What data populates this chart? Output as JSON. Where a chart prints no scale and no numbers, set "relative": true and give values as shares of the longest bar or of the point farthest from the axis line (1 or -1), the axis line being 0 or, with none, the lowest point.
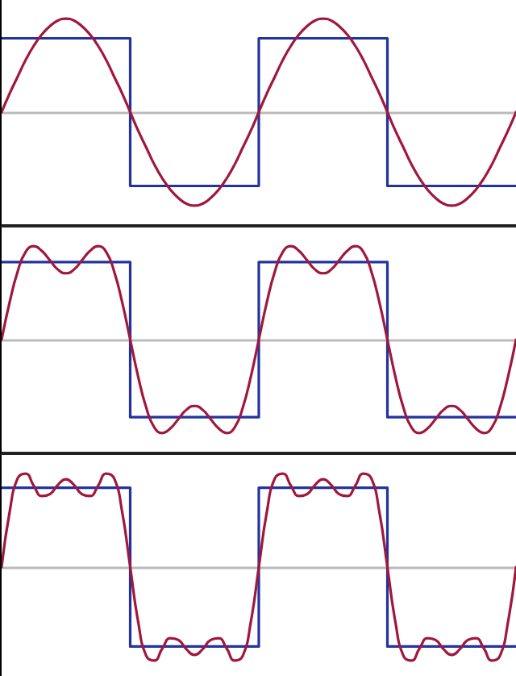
{
  "chart_data": [
    {
      "type": "line",
      "relative": true,
      "categories": [
        null,
        null,
        null,
        null,
        null,
        null,
        null,
        null,
        null,
        null,
        null,
        null,
        null,
        null,
        null,
        null,
        null,
        null,
        null,
        null,
        null,
        null,
        null,
        null,
        null,
        null,
        null,
        null,
        null,
        null,
        null,
        null,
        null,
        null,
        null,
        null,
        null,
        null,
        null,
        null,
        null,
        null,
        null,
        null,
        null,
        null,
        null,
        null,
        null,
        null,
        null,
        null,
        null,
        null,
        null,
        null,
        null,
        null,
        null,
        null,
        null,
        null,
        null,
        null,
        null
      ],
      "series": [
        {
          "type": "step",
          "color": "#2233a0",
          "values": [
            0.79,
            0.79,
            0.79,
            0.79,
            0.79,
            0.79,
            0.79,
            0.79,
            0.79,
            0.79,
            0.79,
            0.79,
            0.79,
            0.79,
            0.79,
            0.79,
            -0.79,
            -0.79,
            -0.79,
            -0.79,
            -0.79,
            -0.79,
            -0.79,
            -0.79,
            -0.79,
            -0.79,
            -0.79,
            -0.79,
            -0.79,
            -0.79,
            -0.79,
            -0.79,
            0.79,
            0.79,
            0.79,
            0.79,
            0.79,
            0.79,
            0.79,
            0.79,
            0.79,
            0.79,
            0.79,
            0.79,
            0.79,
            0.79,
            0.79,
            0.79,
            -0.79,
            -0.79,
            -0.79,
            -0.79,
            -0.79,
            -0.79,
            -0.79,
            -0.79,
            -0.79,
            -0.79,
            -0.79,
            -0.79,
            -0.79,
            -0.79,
            -0.79,
            -0.79,
            -0.79
          ]
        },
        {
          "type": "line",
          "color": "#a0183c",
          "values": [
            0,
            0.2,
            0.38,
            0.56,
            0.71,
            0.83,
            0.92,
            0.98,
            1,
            0.98,
            0.92,
            0.83,
            0.71,
            0.56,
            0.38,
            0.2,
            0,
            -0.2,
            -0.38,
            -0.56,
            -0.71,
            -0.83,
            -0.92,
            -0.98,
            -1,
            -0.98,
            -0.92,
            -0.83,
            -0.71,
            -0.56,
            -0.38,
            -0.2,
            0,
            0.2,
            0.38,
            0.56,
            0.71,
            0.83,
            0.92,
            0.98,
            1,
            0.98,
            0.92,
            0.83,
            0.71,
            0.56,
            0.38,
            0.2,
            0,
            -0.2,
            -0.38,
            -0.56,
            -0.71,
            -0.83,
            -0.92,
            -0.98,
            -1,
            -0.98,
            -0.92,
            -0.83,
            -0.71,
            -0.56,
            -0.38,
            -0.2,
            0
          ]
        }
      ]
    },
    {
      "type": "line",
      "relative": true,
      "categories": [
        null,
        null,
        null,
        null,
        null,
        null,
        null,
        null,
        null,
        null,
        null,
        null,
        null,
        null,
        null,
        null,
        null,
        null,
        null,
        null,
        null,
        null,
        null,
        null,
        null,
        null,
        null,
        null,
        null,
        null,
        null,
        null,
        null,
        null,
        null,
        null,
        null,
        null,
        null,
        null,
        null,
        null,
        null,
        null,
        null,
        null,
        null,
        null,
        null,
        null,
        null,
        null,
        null,
        null,
        null,
        null,
        null,
        null,
        null,
        null,
        null,
        null,
        null,
        null,
        null
      ],
      "series": [
        {
          "type": "step",
          "color": "#2233a0",
          "values": [
            0.83,
            0.83,
            0.83,
            0.83,
            0.83,
            0.83,
            0.83,
            0.83,
            0.83,
            0.83,
            0.83,
            0.83,
            0.83,
            0.83,
            0.83,
            0.83,
            -0.83,
            -0.83,
            -0.83,
            -0.83,
            -0.83,
            -0.83,
            -0.83,
            -0.83,
            -0.83,
            -0.83,
            -0.83,
            -0.83,
            -0.83,
            -0.83,
            -0.83,
            -0.83,
            0.83,
            0.83,
            0.83,
            0.83,
            0.83,
            0.83,
            0.83,
            0.83,
            0.83,
            0.83,
            0.83,
            0.83,
            0.83,
            0.83,
            0.83,
            0.83,
            -0.83,
            -0.83,
            -0.83,
            -0.83,
            -0.83,
            -0.83,
            -0.83,
            -0.83,
            -0.83,
            -0.83,
            -0.83,
            -0.83,
            -0.83,
            -0.83,
            -0.83,
            -0.83,
            -0.83
          ]
        },
        {
          "type": "line",
          "color": "#a0183c",
          "values": [
            0,
            0.4,
            0.73,
            0.94,
            1,
            0.95,
            0.85,
            0.75,
            0.71,
            0.75,
            0.85,
            0.95,
            1,
            0.94,
            0.73,
            0.4,
            0,
            -0.4,
            -0.73,
            -0.94,
            -1,
            -0.95,
            -0.85,
            -0.75,
            -0.71,
            -0.75,
            -0.85,
            -0.95,
            -1,
            -0.94,
            -0.73,
            -0.4,
            0,
            0.4,
            0.73,
            0.94,
            1,
            0.95,
            0.85,
            0.75,
            0.71,
            0.75,
            0.85,
            0.95,
            1,
            0.94,
            0.73,
            0.4,
            0,
            -0.4,
            -0.73,
            -0.94,
            -1,
            -0.95,
            -0.85,
            -0.75,
            -0.71,
            -0.75,
            -0.85,
            -0.95,
            -1,
            -0.94,
            -0.73,
            -0.4,
            0
          ]
        }
      ]
    },
    {
      "type": "line",
      "relative": true,
      "categories": [
        null,
        null,
        null,
        null,
        null,
        null,
        null,
        null,
        null,
        null,
        null,
        null,
        null,
        null,
        null,
        null,
        null,
        null,
        null,
        null,
        null,
        null,
        null,
        null,
        null,
        null,
        null,
        null,
        null,
        null,
        null,
        null,
        null,
        null,
        null,
        null,
        null,
        null,
        null,
        null,
        null,
        null,
        null,
        null,
        null,
        null,
        null,
        null,
        null,
        null,
        null,
        null,
        null,
        null,
        null,
        null,
        null,
        null,
        null,
        null,
        null,
        null,
        null,
        null,
        null
      ],
      "series": [
        {
          "type": "step",
          "color": "#2233a0",
          "values": [
            0.85,
            0.85,
            0.85,
            0.85,
            0.85,
            0.85,
            0.85,
            0.85,
            0.85,
            0.85,
            0.85,
            0.85,
            0.85,
            0.85,
            0.85,
            0.85,
            -0.85,
            -0.85,
            -0.85,
            -0.85,
            -0.85,
            -0.85,
            -0.85,
            -0.85,
            -0.85,
            -0.85,
            -0.85,
            -0.85,
            -0.85,
            -0.85,
            -0.85,
            -0.85,
            0.85,
            0.85,
            0.85,
            0.85,
            0.85,
            0.85,
            0.85,
            0.85,
            0.85,
            0.85,
            0.85,
            0.85,
            0.85,
            0.85,
            0.85,
            0.85,
            -0.85,
            -0.85,
            -0.85,
            -0.85,
            -0.85,
            -0.85,
            -0.85,
            -0.85,
            -0.85,
            -0.85,
            -0.85,
            -0.85,
            -0.85,
            -0.85,
            -0.85,
            -0.85,
            -0.85
          ]
        },
        {
          "type": "line",
          "color": "#a0183c",
          "values": [
            0,
            0.59,
            0.95,
            1,
            0.87,
            0.76,
            0.78,
            0.88,
            0.94,
            0.88,
            0.78,
            0.76,
            0.87,
            1,
            0.95,
            0.59,
            0,
            -0.59,
            -0.95,
            -1,
            -0.87,
            -0.76,
            -0.78,
            -0.88,
            -0.94,
            -0.88,
            -0.78,
            -0.76,
            -0.87,
            -1,
            -0.95,
            -0.59,
            0,
            0.59,
            0.95,
            1,
            0.87,
            0.76,
            0.78,
            0.88,
            0.94,
            0.88,
            0.78,
            0.76,
            0.87,
            1,
            0.95,
            0.59,
            0,
            -0.59,
            -0.95,
            -1,
            -0.87,
            -0.76,
            -0.78,
            -0.88,
            -0.94,
            -0.88,
            -0.78,
            -0.76,
            -0.87,
            -1,
            -0.95,
            -0.59,
            0
          ]
        }
      ]
    }
  ]
}
